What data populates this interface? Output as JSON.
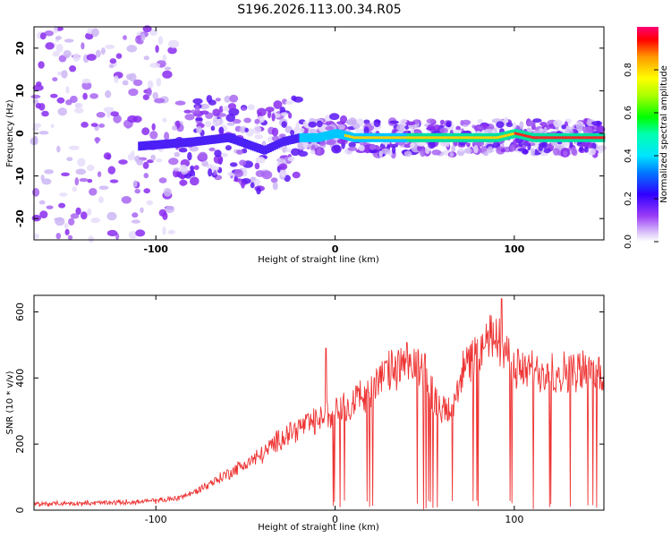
{
  "title": "S196.2026.113.00.34.R05",
  "colors": {
    "axis": "#000000",
    "snr_line": "#ee3333",
    "background": "#ffffff"
  },
  "chart_data": [
    {
      "type": "heatmap",
      "xlabel": "Height of straight line (km)",
      "ylabel": "Frequency (Hz)",
      "xlim": [
        -168,
        150
      ],
      "ylim": [
        -25,
        25
      ],
      "xticks": [
        -100,
        0,
        100
      ],
      "yticks": [
        -20,
        -10,
        0,
        10,
        20
      ],
      "colorbar": {
        "label": "Normalized spectral amplitude",
        "range": [
          0,
          1
        ],
        "ticks": [
          "0.0",
          "0.2",
          "0.4",
          "0.6",
          "0.8"
        ],
        "tick_values": [
          0,
          0.2,
          0.4,
          0.6,
          0.8
        ]
      },
      "dominant_frequency_trend": {
        "x": [
          -110,
          -80,
          -60,
          -40,
          -30,
          -20,
          -10,
          0,
          10,
          20,
          30,
          40,
          50,
          60,
          70,
          80,
          90,
          100,
          110,
          120,
          130,
          140,
          150
        ],
        "freq": [
          -3,
          -2,
          -1,
          -4,
          -2,
          -1,
          -1,
          0,
          -1,
          -1,
          -1,
          -1,
          -1,
          -1,
          -1,
          -1,
          -1,
          0,
          -1,
          -1,
          -1,
          -1,
          -1
        ]
      }
    },
    {
      "type": "line",
      "xlabel": "Height of straight line (km)",
      "ylabel": "SNR (10 * v/v)",
      "xlim": [
        -168,
        150
      ],
      "ylim": [
        0,
        650
      ],
      "xticks": [
        -100,
        0,
        100
      ],
      "yticks": [
        0,
        200,
        400,
        600
      ],
      "series": [
        {
          "name": "SNR",
          "x": [
            -168,
            -150,
            -130,
            -110,
            -100,
            -90,
            -80,
            -70,
            -60,
            -50,
            -40,
            -30,
            -20,
            -10,
            0,
            10,
            20,
            30,
            40,
            50,
            55,
            60,
            65,
            70,
            80,
            90,
            100,
            110,
            120,
            130,
            140,
            150
          ],
          "y": [
            18,
            20,
            22,
            25,
            28,
            35,
            50,
            80,
            110,
            140,
            170,
            220,
            250,
            270,
            300,
            330,
            360,
            420,
            440,
            430,
            340,
            300,
            300,
            420,
            470,
            540,
            430,
            420,
            420,
            420,
            420,
            410
          ]
        }
      ],
      "dropouts_visible": true
    }
  ]
}
